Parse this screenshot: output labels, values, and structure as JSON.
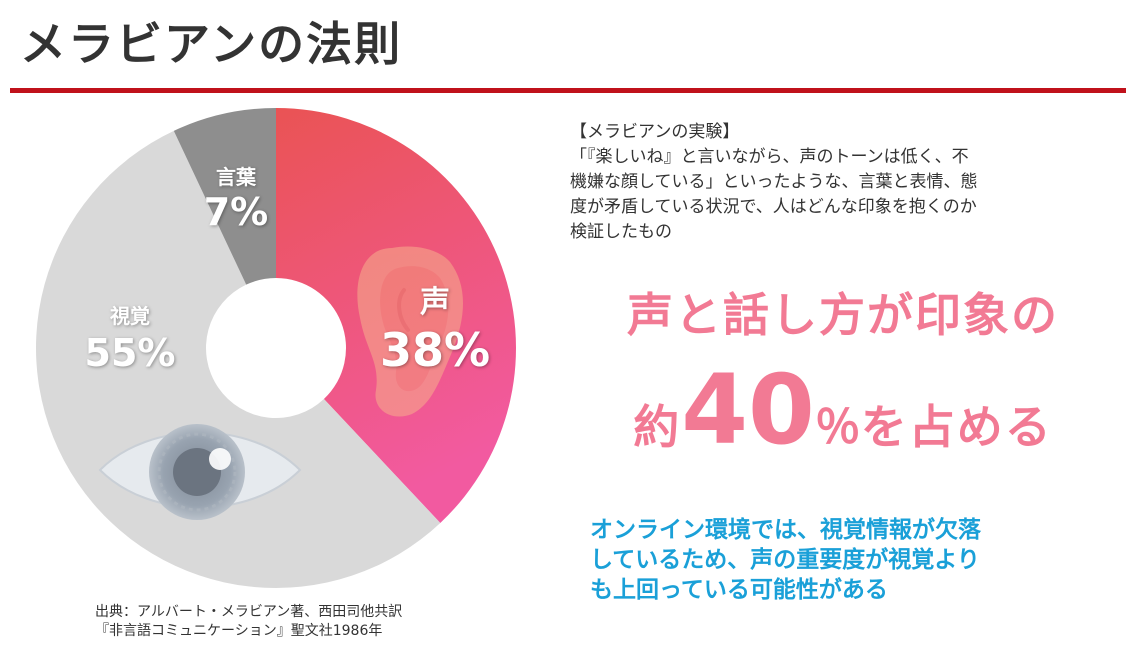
{
  "page": {
    "title": "メラビアンの法則"
  },
  "chart_data": {
    "type": "pie",
    "variant": "donut",
    "categories": [
      "声",
      "視覚",
      "言葉"
    ],
    "values": [
      38,
      55,
      7
    ],
    "value_labels": [
      "38%",
      "55%",
      "7%"
    ],
    "colors": [
      "#ee4f6e",
      "#d9d9d9",
      "#8e8e8e"
    ],
    "title": "",
    "legend": "none"
  },
  "source": {
    "line1": "出典：アルバート・メラビアン著、西田司他共訳",
    "line2": "『非言語コミュニケーション』聖文社1986年"
  },
  "experiment": {
    "heading": "【メラビアンの実験】",
    "line1": "「『楽しいね』と言いながら、声のトーンは低く、不",
    "line2": "機嫌な顔している」といったような、言葉と表情、態",
    "line3": "度が矛盾している状況で、人はどんな印象を抱くのか",
    "line4": "検証したもの"
  },
  "headline": {
    "line1": "声と話し方が印象の",
    "prefix": "約",
    "number": "40",
    "percent": "％",
    "suffix": "を占める",
    "color": "#f27a94"
  },
  "note": {
    "line1": "オンライン環境では、視覚情報が欠落",
    "line2": "しているため、声の重要度が視覚より",
    "line3": "も上回っている可能性がある",
    "color": "#1aa0d8"
  },
  "icons": [
    "ear-icon",
    "eye-icon"
  ]
}
